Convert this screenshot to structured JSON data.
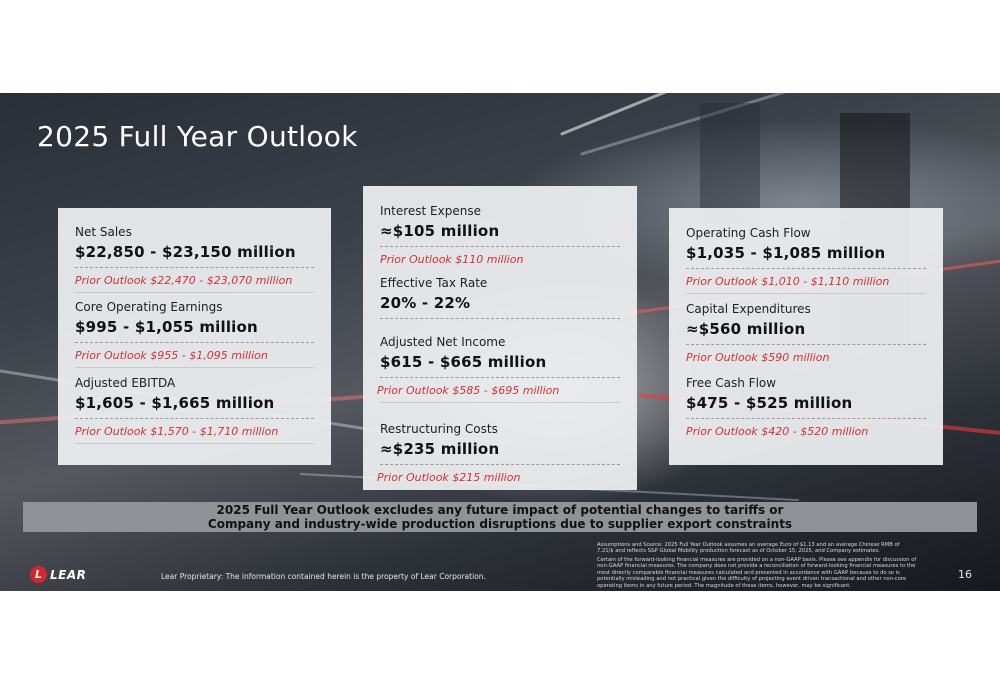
{
  "title": "2025 Full Year Outlook",
  "cards": [
    {
      "items": [
        {
          "label": "Net Sales",
          "value": "$22,850 - $23,150 million",
          "prior": "Prior Outlook $22,470 - $23,070 million"
        },
        {
          "label": "Core Operating Earnings",
          "value": "$995 - $1,055 million",
          "prior": "Prior Outlook $955 - $1,095 million"
        },
        {
          "label": "Adjusted EBITDA",
          "value": "$1,605 - $1,665 million",
          "prior": "Prior Outlook $1,570 - $1,710 million"
        }
      ]
    },
    {
      "items": [
        {
          "label": "Interest Expense",
          "value": "≈$105 million",
          "prior": "Prior Outlook $110 million"
        },
        {
          "label": "Effective Tax Rate",
          "value": "20% - 22%",
          "prior": ""
        },
        {
          "label": "Adjusted Net Income",
          "value": "$615 - $665 million",
          "prior": "Prior Outlook $585 - $695 million"
        },
        {
          "label": "Restructuring Costs",
          "value": "≈$235 million",
          "prior": "Prior Outlook $215 million"
        }
      ]
    },
    {
      "items": [
        {
          "label": "Operating Cash Flow",
          "value": "$1,035 - $1,085 million",
          "prior": "Prior Outlook $1,010 - $1,110 million"
        },
        {
          "label": "Capital Expenditures",
          "value": "≈$560 million",
          "prior": "Prior Outlook $590 million"
        },
        {
          "label": "Free Cash Flow",
          "value": "$475 - $525 million",
          "prior": "Prior Outlook $420 - $520 million"
        }
      ]
    }
  ],
  "banner": {
    "line1": "2025 Full Year Outlook excludes any future impact of potential changes to tariffs or",
    "line2": "Company and industry-wide production disruptions due to supplier export constraints"
  },
  "logo_letter": "L",
  "logo_text": "LEAR",
  "footer": "Lear Proprietary: The information contained herein is the property of Lear Corporation.",
  "fine_print_1": "Assumptions and Source: 2025 Full Year Outlook assumes an average Euro of $1.13 and an average Chinese RMB of 7.21/$ and reflects S&P Global Mobility production forecast as of October 15, 2025, and Company estimates.",
  "fine_print_2": "Certain of the forward-looking financial measures are provided on a non-GAAP basis. Please see appendix for discussion of non-GAAP financial measures. The company does not provide a reconciliation of forward-looking financial measures to the most directly comparable financial measures calculated and presented in accordance with GAAP because to do so is potentially misleading and not practical given the difficulty of projecting event driven transactional and other non-core operating items in any future period. The magnitude of these items, however, may be significant.",
  "page_number": "16",
  "colors": {
    "prior": "#d43131",
    "logo": "#d6262c"
  }
}
